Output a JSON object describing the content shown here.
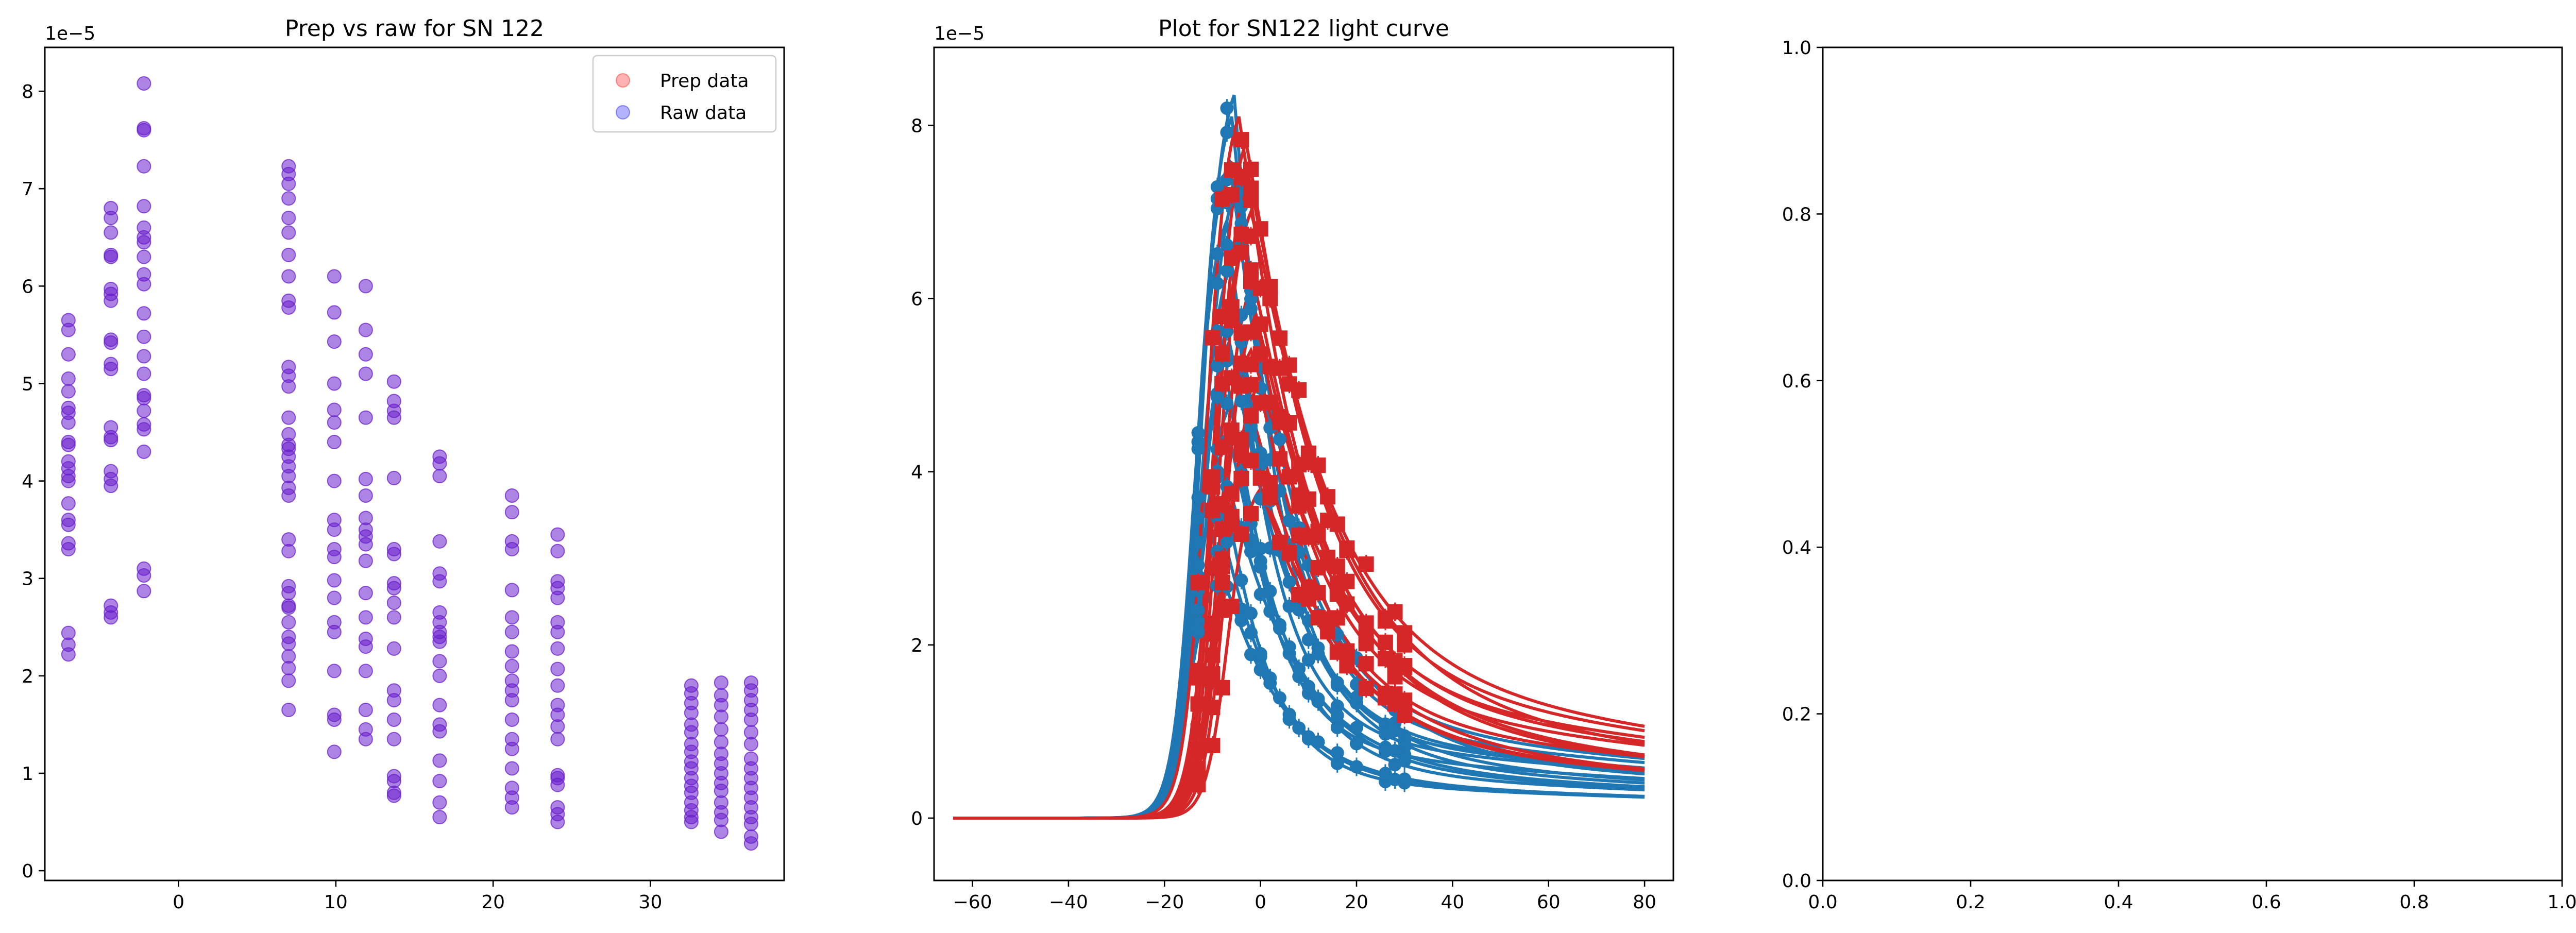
{
  "chart_data": [
    {
      "id": "ax1",
      "type": "scatter",
      "title": "Prep vs raw for SN 122",
      "xlabel": "",
      "ylabel": "",
      "xlim": [
        -8.5,
        38.5
      ],
      "ylim": [
        -0.1,
        8.45
      ],
      "y_offset_text": "1e−5",
      "xticks": [
        0,
        10,
        20,
        30
      ],
      "yticks": [
        0,
        1,
        2,
        3,
        4,
        5,
        6,
        7,
        8
      ],
      "legend": {
        "placement": "upper-right",
        "entries": [
          {
            "label": "Prep data",
            "color": "#ff0000",
            "alpha": 0.3
          },
          {
            "label": "Raw data",
            "color": "#0000ff",
            "alpha": 0.3
          }
        ]
      },
      "grid": false,
      "columns": [
        {
          "x": -7.0,
          "y": [
            2.22,
            2.32,
            2.44,
            3.3,
            3.36,
            3.55,
            3.6,
            3.77,
            4.0,
            4.05,
            4.13,
            4.2,
            4.37,
            4.4,
            4.6,
            4.7,
            4.75,
            4.92,
            5.05,
            5.3,
            5.55,
            5.65
          ]
        },
        {
          "x": -4.3,
          "y": [
            2.6,
            2.65,
            2.72,
            3.95,
            4.02,
            4.1,
            4.42,
            4.45,
            4.55,
            5.15,
            5.2,
            5.42,
            5.45,
            5.85,
            5.92,
            5.97,
            6.3,
            6.32,
            6.55,
            6.7,
            6.8
          ]
        },
        {
          "x": -2.2,
          "y": [
            2.87,
            3.03,
            3.1,
            4.3,
            4.53,
            4.58,
            4.72,
            4.85,
            4.88,
            5.1,
            5.28,
            5.48,
            5.72,
            6.02,
            6.12,
            6.3,
            6.45,
            6.5,
            6.6,
            6.82,
            7.23,
            7.6,
            7.62,
            8.08
          ]
        },
        {
          "x": 7.0,
          "y": [
            1.65,
            1.95,
            2.08,
            2.2,
            2.33,
            2.4,
            2.55,
            2.7,
            2.72,
            2.85,
            2.92,
            3.28,
            3.4,
            3.85,
            3.93,
            4.05,
            4.15,
            4.25,
            4.33,
            4.37,
            4.48,
            4.65,
            4.97,
            5.08,
            5.17,
            5.78,
            5.85,
            6.1,
            6.32,
            6.55,
            6.7,
            6.9,
            7.05,
            7.15,
            7.23
          ]
        },
        {
          "x": 9.9,
          "y": [
            1.22,
            1.55,
            1.6,
            2.05,
            2.45,
            2.55,
            2.8,
            2.98,
            3.22,
            3.3,
            3.5,
            3.6,
            4.0,
            4.4,
            4.6,
            4.73,
            5.0,
            5.43,
            5.73,
            6.1
          ]
        },
        {
          "x": 11.9,
          "y": [
            1.35,
            1.45,
            1.65,
            2.05,
            2.3,
            2.38,
            2.6,
            2.85,
            3.18,
            3.35,
            3.43,
            3.5,
            3.62,
            3.85,
            4.02,
            4.65,
            5.1,
            5.3,
            5.55,
            6.0
          ]
        },
        {
          "x": 13.7,
          "y": [
            0.77,
            0.8,
            0.92,
            0.97,
            1.35,
            1.55,
            1.75,
            1.85,
            2.28,
            2.6,
            2.75,
            2.9,
            2.95,
            3.25,
            3.3,
            4.03,
            4.65,
            4.72,
            4.82,
            5.02
          ]
        },
        {
          "x": 16.6,
          "y": [
            0.55,
            0.7,
            0.92,
            1.13,
            1.43,
            1.5,
            1.7,
            2.0,
            2.15,
            2.35,
            2.4,
            2.45,
            2.55,
            2.65,
            2.97,
            3.05,
            3.38,
            4.05,
            4.18,
            4.25
          ]
        },
        {
          "x": 21.2,
          "y": [
            0.65,
            0.75,
            0.85,
            1.05,
            1.25,
            1.35,
            1.55,
            1.75,
            1.85,
            1.95,
            2.1,
            2.25,
            2.45,
            2.6,
            2.88,
            3.3,
            3.38,
            3.68,
            3.85
          ]
        },
        {
          "x": 24.1,
          "y": [
            0.5,
            0.58,
            0.65,
            0.88,
            0.95,
            0.98,
            1.35,
            1.48,
            1.6,
            1.7,
            1.9,
            2.07,
            2.28,
            2.45,
            2.55,
            2.8,
            2.9,
            2.97,
            3.28,
            3.45
          ]
        },
        {
          "x": 32.6,
          "y": [
            0.5,
            0.55,
            0.62,
            0.7,
            0.8,
            0.87,
            0.95,
            1.05,
            1.12,
            1.22,
            1.3,
            1.42,
            1.5,
            1.62,
            1.72,
            1.82,
            1.9
          ]
        },
        {
          "x": 34.5,
          "y": [
            0.4,
            0.52,
            0.6,
            0.7,
            0.82,
            0.9,
            1.0,
            1.1,
            1.2,
            1.32,
            1.45,
            1.58,
            1.7,
            1.8,
            1.93
          ]
        },
        {
          "x": 36.4,
          "y": [
            0.28,
            0.35,
            0.48,
            0.55,
            0.65,
            0.75,
            0.85,
            0.95,
            1.05,
            1.15,
            1.3,
            1.42,
            1.55,
            1.65,
            1.75,
            1.85,
            1.93
          ]
        }
      ],
      "marker_color": "#6a1fcc"
    },
    {
      "id": "ax2",
      "type": "line",
      "title": "Plot for SN122 light curve",
      "xlabel": "",
      "ylabel": "",
      "xlim": [
        -68,
        86
      ],
      "ylim": [
        -0.72,
        8.9
      ],
      "y_offset_text": "1e−5",
      "xticks": [
        -60,
        -40,
        -20,
        0,
        20,
        40,
        60,
        80
      ],
      "yticks": [
        0,
        2,
        4,
        6,
        8
      ],
      "grid": false,
      "series": [
        {
          "band": "blue",
          "color": "#1f77b4",
          "peaks": [
            8.35,
            8.1,
            7.6,
            7.3,
            6.9,
            6.4,
            5.9,
            5.5,
            5.1,
            4.8,
            4.4,
            4.0,
            3.6,
            3.2,
            2.8
          ],
          "peak_x": [
            -5.5,
            -6,
            -6.5,
            -5,
            -7,
            -6,
            -5.5,
            -6.5,
            -7,
            -6,
            -6.5,
            -7.5,
            -7,
            -7.5,
            -8
          ]
        },
        {
          "band": "red",
          "color": "#d62728",
          "peaks": [
            8.1,
            7.8,
            7.4,
            7.0,
            6.6,
            6.2,
            5.8,
            5.4,
            5.0,
            4.6,
            4.2,
            3.8
          ],
          "peak_x": [
            -4.5,
            -3,
            -2.5,
            -2,
            -3.5,
            -1.5,
            -1,
            -2,
            -0.5,
            -1.5,
            -2.5,
            0
          ]
        }
      ],
      "marker_columns": {
        "blue": [
          -13,
          -9,
          -7,
          -4,
          -2,
          0,
          2,
          4,
          6,
          8,
          10,
          12,
          16,
          20,
          26,
          28,
          30
        ],
        "red": [
          -13,
          -10,
          -8,
          -6,
          -4,
          -2,
          0,
          2,
          4,
          6,
          8,
          10,
          12,
          14,
          16,
          18,
          22,
          26,
          28,
          30
        ]
      }
    },
    {
      "id": "ax3",
      "type": "scatter",
      "title": "",
      "xlim": [
        0,
        1
      ],
      "ylim": [
        0,
        1
      ],
      "xticks": [
        0.0,
        0.2,
        0.4,
        0.6,
        0.8,
        1.0
      ],
      "yticks": [
        0.0,
        0.2,
        0.4,
        0.6,
        0.8,
        1.0
      ],
      "xtick_labels": [
        "0.0",
        "0.2",
        "0.4",
        "0.6",
        "0.8",
        "1.0"
      ],
      "ytick_labels": [
        "0.0",
        "0.2",
        "0.4",
        "0.6",
        "0.8",
        "1.0"
      ],
      "series": []
    }
  ],
  "colors": {
    "purple_marker": "#6a1fcc",
    "blue_line": "#1f77b4",
    "red_line": "#d62728"
  }
}
